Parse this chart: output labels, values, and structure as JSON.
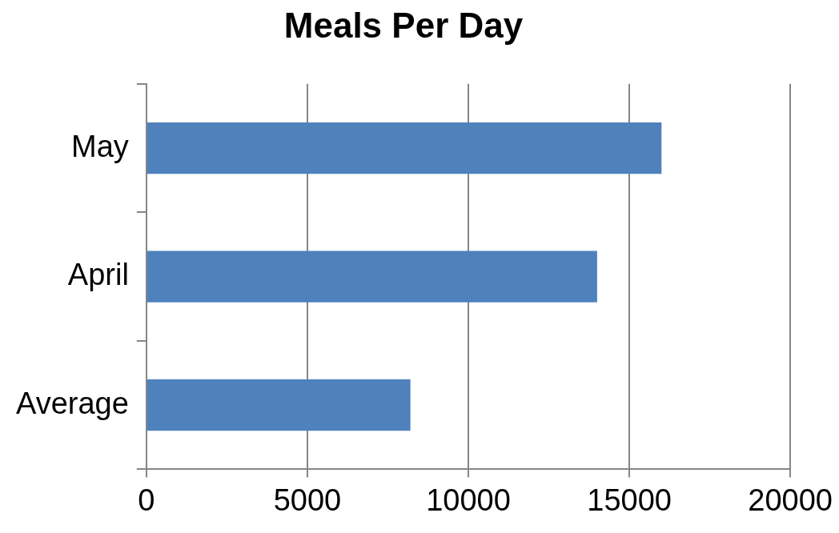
{
  "chart_data": {
    "type": "bar",
    "orientation": "horizontal",
    "title": "Meals Per Day",
    "categories": [
      "May",
      "April",
      "Average"
    ],
    "values": [
      16000,
      14000,
      8200
    ],
    "color": "#4f81bd",
    "xlim": [
      0,
      20000
    ],
    "xticks": [
      0,
      5000,
      10000,
      15000,
      20000
    ],
    "grid": "x",
    "legend": false
  }
}
